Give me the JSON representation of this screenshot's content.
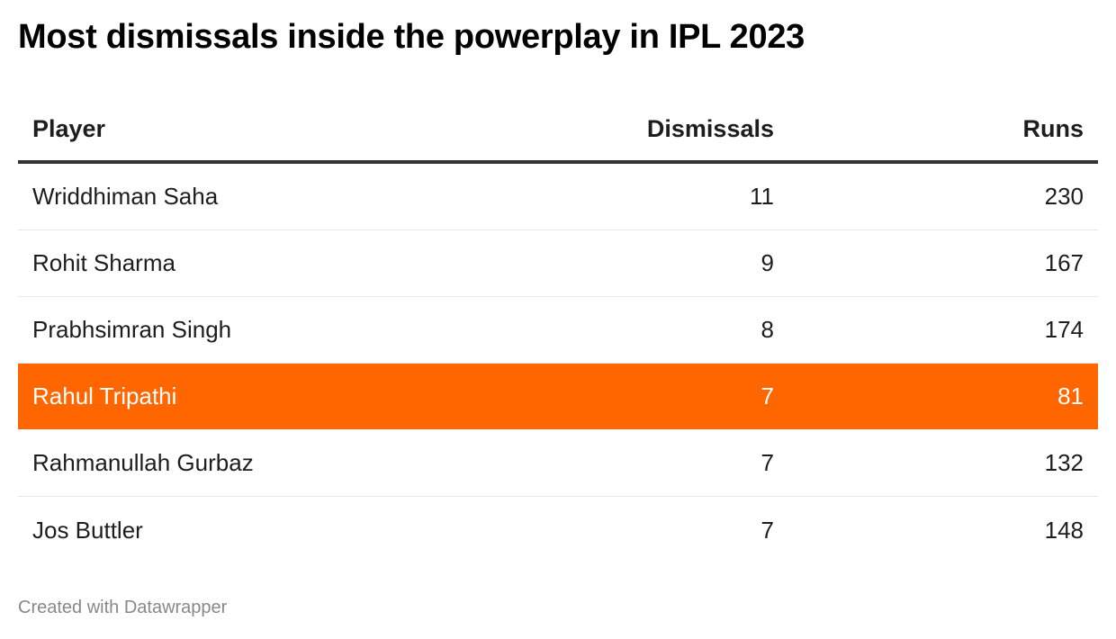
{
  "title": "Most dismissals inside the powerplay in IPL 2023",
  "footer": "Created with Datawrapper",
  "colors": {
    "highlight": "#ff6600",
    "text": "#1d1d1d",
    "footer": "#888888"
  },
  "chart_data": {
    "type": "table",
    "title": "Most dismissals inside the powerplay in IPL 2023",
    "columns": [
      "Player",
      "Dismissals",
      "Runs"
    ],
    "rows": [
      {
        "player": "Wriddhiman Saha",
        "dismissals": "11",
        "runs": "230",
        "highlight": false
      },
      {
        "player": "Rohit Sharma",
        "dismissals": "9",
        "runs": "167",
        "highlight": false
      },
      {
        "player": "Prabhsimran Singh",
        "dismissals": "8",
        "runs": "174",
        "highlight": false
      },
      {
        "player": "Rahul Tripathi",
        "dismissals": "7",
        "runs": "81",
        "highlight": true
      },
      {
        "player": "Rahmanullah Gurbaz",
        "dismissals": "7",
        "runs": "132",
        "highlight": false
      },
      {
        "player": "Jos Buttler",
        "dismissals": "7",
        "runs": "148",
        "highlight": false
      }
    ]
  }
}
